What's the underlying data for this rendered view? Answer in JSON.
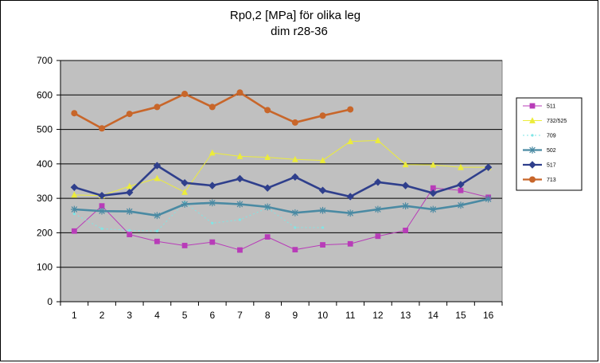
{
  "chart_data": {
    "type": "line",
    "title": [
      "Rp0,2 [MPa] för olika leg",
      "dim r28-36"
    ],
    "xlabel": "",
    "ylabel": "",
    "x": [
      1,
      2,
      3,
      4,
      5,
      6,
      7,
      8,
      9,
      10,
      11,
      12,
      13,
      14,
      15,
      16
    ],
    "ylim": [
      0,
      700
    ],
    "yticks": [
      0,
      100,
      200,
      300,
      400,
      500,
      600,
      700
    ],
    "grid": true,
    "plot_background": "#c0c0c0",
    "legend_position": "right",
    "series": [
      {
        "name": "511",
        "color": "#b83cb8",
        "marker": "square",
        "width": 1,
        "values": [
          205,
          278,
          195,
          175,
          163,
          173,
          150,
          188,
          151,
          165,
          168,
          190,
          207,
          330,
          323,
          303
        ]
      },
      {
        "name": "732/525",
        "color": "#ecec3a",
        "marker": "triangle",
        "width": 1,
        "values": [
          310,
          308,
          335,
          358,
          318,
          432,
          422,
          419,
          413,
          410,
          465,
          468,
          398,
          397,
          390,
          390
        ]
      },
      {
        "name": "709",
        "color": "#7fe6e6",
        "marker": "dot",
        "width": 1,
        "dashed": true,
        "values": [
          255,
          212,
          207,
          205,
          288,
          228,
          238,
          272,
          215,
          215,
          null,
          null,
          null,
          null,
          null,
          null
        ]
      },
      {
        "name": "502",
        "color": "#4a8aa3",
        "marker": "star",
        "width": 2.6,
        "values": [
          268,
          263,
          262,
          250,
          283,
          287,
          283,
          275,
          258,
          265,
          257,
          268,
          278,
          268,
          280,
          298
        ]
      },
      {
        "name": "517",
        "color": "#2f3f8c",
        "marker": "diamond",
        "width": 2.6,
        "values": [
          332,
          308,
          317,
          395,
          345,
          337,
          357,
          330,
          362,
          323,
          305,
          347,
          337,
          315,
          340,
          390
        ]
      },
      {
        "name": "713",
        "color": "#c8662a",
        "marker": "circle",
        "width": 2.6,
        "values": [
          547,
          503,
          545,
          565,
          603,
          565,
          607,
          556,
          520,
          540,
          558,
          null,
          null,
          null,
          null,
          null
        ]
      }
    ]
  }
}
